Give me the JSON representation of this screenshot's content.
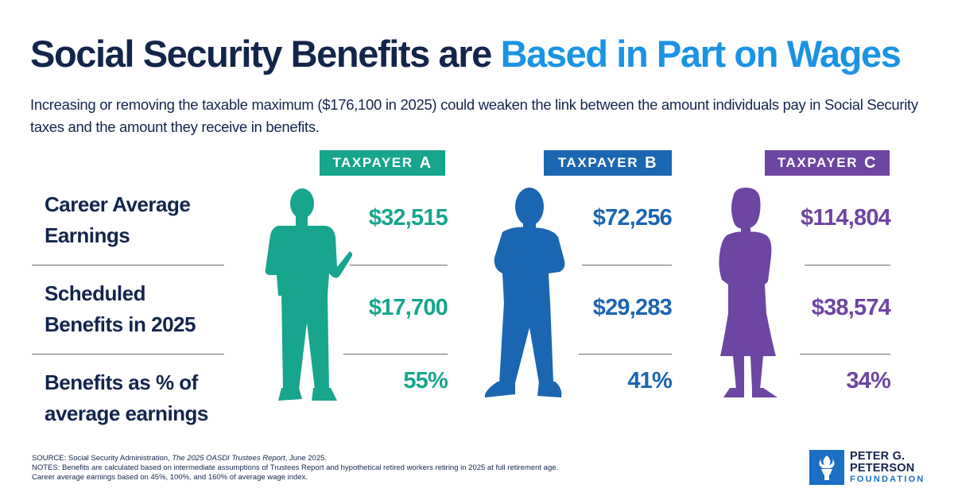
{
  "header": {
    "title_main": "Social Security Benefits are",
    "title_accent": "Based in Part on Wages",
    "subtitle": "Increasing or removing the taxable maximum ($176,100 in 2025) could weaken the link between the amount individuals pay in Social Security taxes and the amount they receive in benefits."
  },
  "colors": {
    "navy": "#14254c",
    "accent": "#1b93e5",
    "taxpayer_a": "#17a58d",
    "taxpayer_b": "#1b66b1",
    "taxpayer_c": "#6d45a2"
  },
  "chart_data": {
    "type": "table",
    "rows": [
      {
        "label_line1": "Career Average",
        "label_line2": "Earnings"
      },
      {
        "label_line1": "Scheduled",
        "label_line2": "Benefits in 2025"
      },
      {
        "label_line1": "Benefits as % of",
        "label_line2": "average earnings"
      }
    ],
    "columns": [
      {
        "badge_text": "TAXPAYER",
        "badge_letter": "A",
        "values": [
          "$32,515",
          "$17,700",
          "55%"
        ],
        "icon": "person-silhouette-a"
      },
      {
        "badge_text": "TAXPAYER",
        "badge_letter": "B",
        "values": [
          "$72,256",
          "$29,283",
          "41%"
        ],
        "icon": "person-silhouette-b"
      },
      {
        "badge_text": "TAXPAYER",
        "badge_letter": "C",
        "values": [
          "$114,804",
          "$38,574",
          "34%"
        ],
        "icon": "person-silhouette-c"
      }
    ]
  },
  "footnotes": {
    "source_prefix": "SOURCE: Social Security Administration, ",
    "source_title": "The 2025 OASDI Trustees Report",
    "source_suffix": ", June 2025.",
    "notes_line1": "NOTES: Benefits are calculated based on intermediate assumptions of Trustees Report and hypothetical retired workers retiring in 2025 at full retirement age.",
    "notes_line2": "Career average earnings based on 45%, 100%, and 160% of average wage index."
  },
  "logo": {
    "line1": "PETER G.",
    "line2": "PETERSON",
    "line3": "FOUNDATION",
    "icon": "torch-icon"
  }
}
